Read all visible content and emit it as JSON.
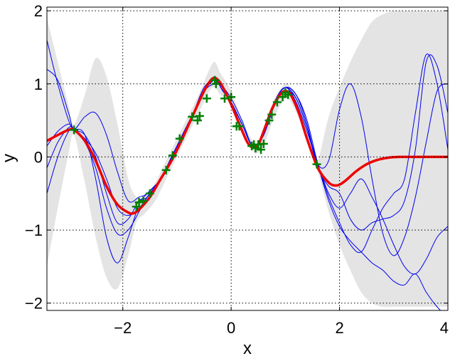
{
  "chart_data": {
    "type": "line",
    "xlabel": "x",
    "ylabel": "y",
    "xlim": [
      -3.4,
      4
    ],
    "ylim": [
      -2.1,
      2.05
    ],
    "xticks": [
      -2,
      0,
      2,
      4
    ],
    "xtick_labels": [
      "−2",
      "0",
      "2",
      "4"
    ],
    "yticks": [
      -2,
      -1,
      0,
      1,
      2
    ],
    "ytick_labels": [
      "−2",
      "−1",
      "0",
      "1",
      "2"
    ],
    "grid": true,
    "legend": "none",
    "colors": {
      "mean": "#ee0000",
      "samples": "#0000ee",
      "band": "#e4e4e4",
      "observations": "#008000"
    },
    "confidence_band": {
      "x": [
        -3.4,
        -3.2,
        -3.0,
        -2.9,
        -2.7,
        -2.5,
        -2.3,
        -2.1,
        -1.9,
        -1.75,
        -1.6,
        -1.4,
        -1.2,
        -1.0,
        -0.8,
        -0.6,
        -0.4,
        -0.3,
        -0.2,
        0.0,
        0.2,
        0.4,
        0.5,
        0.6,
        0.8,
        1.0,
        1.1,
        1.3,
        1.5,
        1.6,
        1.8,
        2.0,
        2.2,
        2.4,
        2.6,
        2.8,
        3.0,
        3.2,
        4.0
      ],
      "upper": [
        1.9,
        1.3,
        0.7,
        0.45,
        0.85,
        1.35,
        1.1,
        0.45,
        -0.3,
        -0.55,
        -0.55,
        -0.35,
        -0.05,
        0.25,
        0.55,
        0.85,
        1.2,
        1.3,
        1.15,
        0.9,
        0.5,
        0.22,
        0.2,
        0.4,
        0.8,
        1.0,
        0.95,
        0.7,
        0.1,
        -0.05,
        0.55,
        0.95,
        1.3,
        1.6,
        1.85,
        1.95,
        2.0,
        2.0,
        2.0
      ],
      "lower": [
        -1.5,
        -0.7,
        0.05,
        0.3,
        -0.35,
        -1.1,
        -1.65,
        -1.8,
        -1.35,
        -0.9,
        -0.78,
        -0.6,
        -0.3,
        0.0,
        0.3,
        0.6,
        0.9,
        0.95,
        0.85,
        0.72,
        0.35,
        0.08,
        0.06,
        0.15,
        0.55,
        0.8,
        0.75,
        0.45,
        -0.02,
        -0.2,
        -0.75,
        -1.2,
        -1.55,
        -1.85,
        -2.0,
        -2.05,
        -2.05,
        -2.05,
        -2.05
      ]
    },
    "mean_function": {
      "x": [
        -3.4,
        -3.2,
        -3.0,
        -2.9,
        -2.7,
        -2.5,
        -2.3,
        -2.1,
        -1.9,
        -1.8,
        -1.7,
        -1.5,
        -1.3,
        -1.1,
        -0.9,
        -0.7,
        -0.5,
        -0.35,
        -0.25,
        -0.15,
        0.0,
        0.15,
        0.3,
        0.4,
        0.5,
        0.6,
        0.75,
        0.9,
        1.0,
        1.1,
        1.25,
        1.4,
        1.6,
        1.8,
        1.95,
        2.1,
        2.3,
        2.5,
        2.7,
        2.9,
        3.1,
        3.3,
        3.5,
        4.0
      ],
      "y": [
        0.22,
        0.3,
        0.37,
        0.37,
        0.22,
        -0.05,
        -0.4,
        -0.65,
        -0.76,
        -0.77,
        -0.72,
        -0.55,
        -0.3,
        -0.05,
        0.25,
        0.58,
        0.9,
        1.07,
        1.06,
        0.95,
        0.72,
        0.45,
        0.2,
        0.13,
        0.17,
        0.35,
        0.65,
        0.85,
        0.9,
        0.85,
        0.6,
        0.25,
        -0.15,
        -0.35,
        -0.39,
        -0.33,
        -0.2,
        -0.1,
        -0.04,
        -0.01,
        0.0,
        0.0,
        0.0,
        0.0
      ]
    },
    "sample_x": [
      -3.4,
      -3.2,
      -3.0,
      -2.9,
      -2.7,
      -2.5,
      -2.3,
      -2.1,
      -1.9,
      -1.7,
      -1.55,
      -1.3,
      -1.1,
      -0.9,
      -0.7,
      -0.5,
      -0.3,
      -0.15,
      0.0,
      0.2,
      0.4,
      0.6,
      0.8,
      1.0,
      1.2,
      1.4,
      1.6,
      1.8,
      2.0,
      2.2,
      2.4,
      2.6,
      2.8,
      3.0,
      3.2,
      3.4,
      3.6,
      3.8,
      4.0
    ],
    "series": [
      {
        "values": [
          1.6,
          1.0,
          0.5,
          0.38,
          0.3,
          0.0,
          -0.5,
          -0.9,
          -0.85,
          -0.6,
          -0.55,
          -0.3,
          0.0,
          0.3,
          0.6,
          0.95,
          1.05,
          0.9,
          0.75,
          0.45,
          0.15,
          0.3,
          0.75,
          0.95,
          0.75,
          0.35,
          -0.1,
          -0.5,
          -0.7,
          -0.5,
          -0.3,
          -0.55,
          -0.85,
          -1.2,
          -1.5,
          -1.6,
          -1.4,
          -1.1,
          -0.95
        ]
      },
      {
        "values": [
          1.2,
          1.05,
          0.6,
          0.38,
          0.55,
          0.6,
          0.3,
          -0.2,
          -0.6,
          -0.55,
          -0.5,
          -0.3,
          0.0,
          0.3,
          0.6,
          0.9,
          1.0,
          0.95,
          0.8,
          0.5,
          0.15,
          0.3,
          0.7,
          0.9,
          0.8,
          0.4,
          -0.1,
          -0.55,
          -0.9,
          -1.2,
          -1.3,
          -1.0,
          -0.7,
          -0.5,
          -0.3,
          0.6,
          1.4,
          1.0,
          0.1
        ]
      },
      {
        "values": [
          -0.5,
          0.0,
          0.35,
          0.38,
          0.3,
          -0.3,
          -1.1,
          -1.45,
          -1.1,
          -0.65,
          -0.5,
          -0.3,
          0.0,
          0.3,
          0.6,
          0.9,
          1.05,
          0.9,
          0.75,
          0.45,
          0.15,
          0.3,
          0.75,
          0.95,
          0.8,
          0.4,
          -0.15,
          -0.4,
          -0.5,
          -0.85,
          -1.0,
          -0.9,
          -0.85,
          -0.8,
          -0.6,
          0.1,
          1.3,
          1.25,
          0.6
        ]
      },
      {
        "values": [
          -0.15,
          0.2,
          0.4,
          0.38,
          0.2,
          -0.15,
          -0.7,
          -1.05,
          -1.0,
          -0.75,
          -0.55,
          -0.3,
          0.0,
          0.3,
          0.6,
          0.9,
          1.05,
          0.9,
          0.75,
          0.45,
          0.15,
          0.3,
          0.75,
          0.95,
          0.85,
          0.5,
          -0.1,
          -0.6,
          -0.95,
          -1.15,
          -1.3,
          -1.45,
          -1.55,
          -1.7,
          -1.75,
          -1.6,
          -1.85,
          -2.05,
          -2.2
        ]
      },
      {
        "values": [
          0.15,
          0.35,
          0.45,
          0.38,
          0.25,
          0.05,
          -0.3,
          -0.7,
          -0.8,
          -0.7,
          -0.55,
          -0.3,
          0.0,
          0.3,
          0.6,
          0.9,
          1.05,
          0.9,
          0.75,
          0.45,
          0.15,
          0.3,
          0.75,
          0.95,
          0.85,
          0.45,
          -0.1,
          -0.05,
          0.65,
          1.0,
          0.55,
          -0.3,
          -1.05,
          -1.35,
          -1.1,
          -0.55,
          0.2,
          0.9,
          1.0
        ]
      }
    ],
    "observations": {
      "x": [
        -2.9,
        -1.75,
        -1.7,
        -1.62,
        -1.5,
        -1.2,
        -1.08,
        -0.95,
        -0.72,
        -0.62,
        -0.58,
        -0.45,
        -0.3,
        -0.28,
        -0.12,
        0.0,
        0.1,
        0.15,
        0.38,
        0.42,
        0.45,
        0.5,
        0.55,
        0.6,
        0.7,
        0.75,
        0.85,
        0.95,
        1.0,
        1.05,
        1.58
      ],
      "y": [
        0.37,
        -0.68,
        -0.62,
        -0.6,
        -0.5,
        -0.18,
        0.02,
        0.25,
        0.55,
        0.5,
        0.56,
        0.8,
        1.05,
        1.0,
        0.8,
        0.82,
        0.42,
        0.42,
        0.15,
        0.17,
        0.12,
        0.17,
        0.1,
        0.18,
        0.5,
        0.58,
        0.75,
        0.82,
        0.88,
        0.85,
        -0.1
      ]
    }
  }
}
